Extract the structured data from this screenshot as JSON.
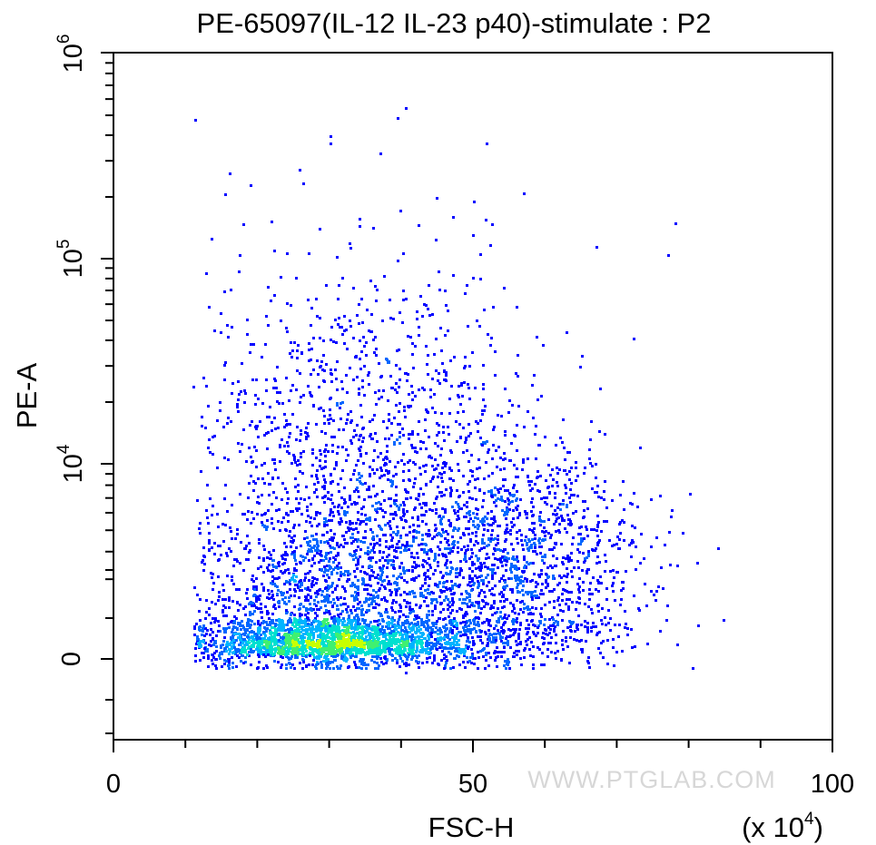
{
  "chart_data": {
    "type": "scatter",
    "title": "PE-65097(IL-12 IL-23 p40)-stimulate : P2",
    "xlabel": "FSC-H",
    "ylabel": "PE-A",
    "x_multiplier_label": "(x 10",
    "x_multiplier_exp": "4",
    "x_multiplier_close": ")",
    "xlim": [
      0,
      100
    ],
    "x_ticks": [
      {
        "label": "0",
        "value": 0
      },
      {
        "label": "50",
        "value": 50
      },
      {
        "label": "100",
        "value": 100
      }
    ],
    "y_scale": "biexponential",
    "ylim": [
      -2000,
      1000000
    ],
    "y_ticks": [
      {
        "base": "0",
        "exp": "",
        "value": 0
      },
      {
        "base": "10",
        "exp": "4",
        "value": 10000
      },
      {
        "base": "10",
        "exp": "5",
        "value": 100000
      },
      {
        "base": "10",
        "exp": "6",
        "value": 1000000
      }
    ],
    "grid": false,
    "legend": "none",
    "color_scale": [
      "#0000ff",
      "#0066ff",
      "#00b4ff",
      "#00e0d0",
      "#40f070",
      "#c8ff00"
    ],
    "populations": [
      {
        "name": "main cluster",
        "x_center": 30,
        "y_center": 1500,
        "x_sd": 10,
        "y_sd_log": 0.35,
        "weight": 0.55
      },
      {
        "name": "right cluster",
        "x_center": 55,
        "y_center": 3500,
        "x_sd": 9,
        "y_sd_log": 0.25,
        "weight": 0.25
      },
      {
        "name": "upper scatter",
        "x_center": 35,
        "y_center": 12000,
        "x_sd": 12,
        "y_sd_log": 0.45,
        "weight": 0.2
      }
    ],
    "outlier_points": [
      {
        "x": 40.5,
        "y": 550000
      },
      {
        "x": 30,
        "y": 400000
      },
      {
        "x": 37,
        "y": 330000
      },
      {
        "x": 19,
        "y": 230000
      },
      {
        "x": 57,
        "y": 210000
      },
      {
        "x": 78,
        "y": 150000
      },
      {
        "x": 67,
        "y": 115000
      },
      {
        "x": 77,
        "y": 105000
      },
      {
        "x": 84,
        "y": 4200
      },
      {
        "x": 81,
        "y": 3600
      },
      {
        "x": 13,
        "y": -300
      },
      {
        "x": 40.5,
        "y": -600
      }
    ]
  },
  "watermark": "WWW.PTGLAB.COM"
}
